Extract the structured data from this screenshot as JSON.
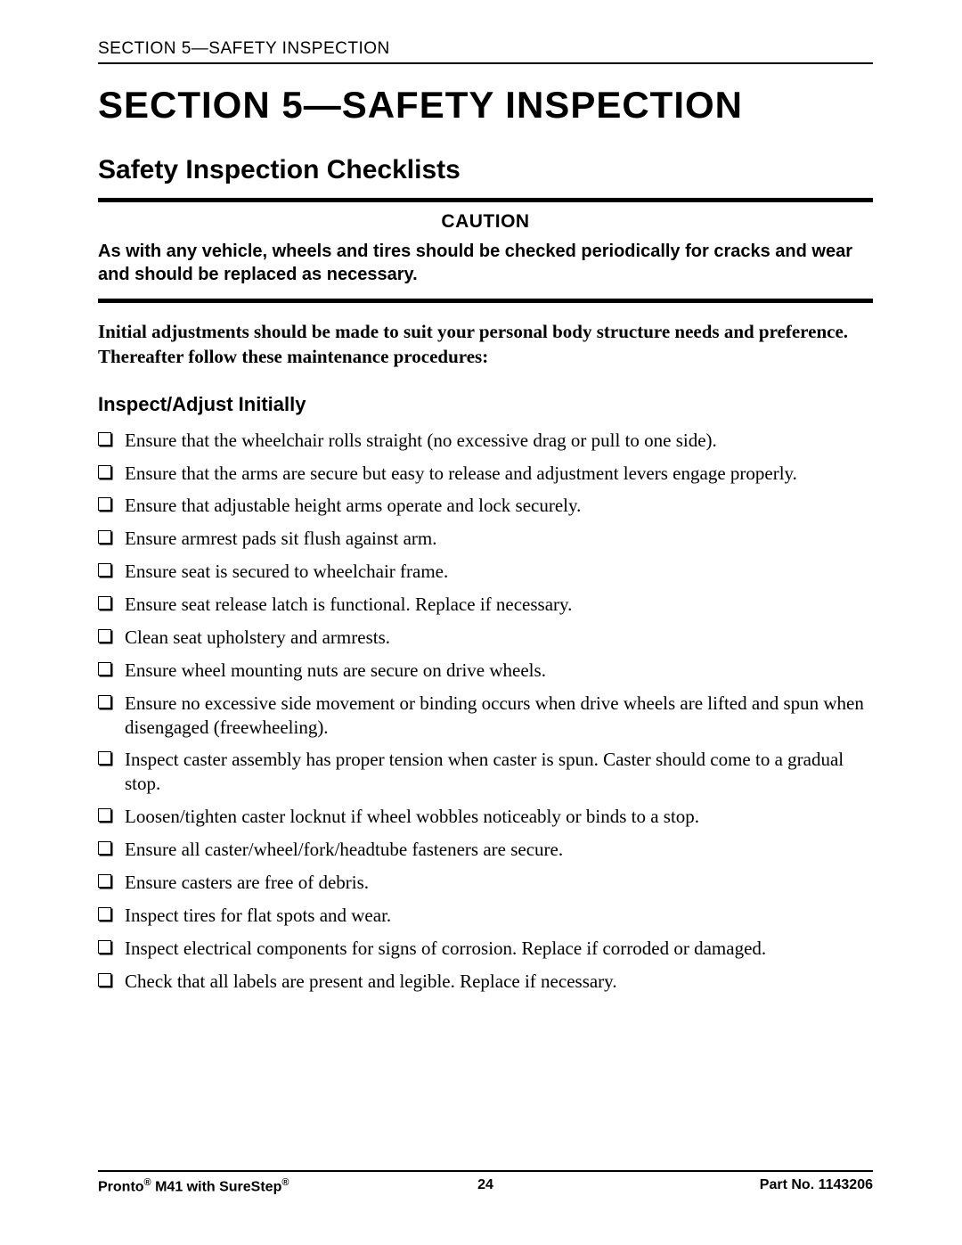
{
  "running_head": "SECTION 5—SAFETY INSPECTION",
  "section_title": "SECTION 5—SAFETY INSPECTION",
  "subsection_title": "Safety Inspection Checklists",
  "caution": {
    "label": "CAUTION",
    "text": "As with any vehicle, wheels and tires should be checked periodically for cracks and wear and should be replaced as necessary."
  },
  "intro": "Initial adjustments should be made to suit your personal body structure needs and preference. Thereafter follow these maintenance procedures:",
  "checklist": {
    "heading": "Inspect/Adjust Initially",
    "items": [
      "Ensure that the wheelchair rolls straight (no excessive drag or pull to one side).",
      "Ensure that the arms are secure but easy to release and adjustment levers engage properly.",
      "Ensure that adjustable height arms operate and lock securely.",
      "Ensure armrest pads sit flush against arm.",
      "Ensure seat is secured to wheelchair frame.",
      "Ensure seat release latch is functional. Replace if necessary.",
      "Clean seat upholstery and armrests.",
      "Ensure wheel mounting nuts are secure on drive wheels.",
      "Ensure no excessive side movement or binding occurs when drive wheels are lifted and spun when disengaged (freewheeling).",
      "Inspect caster assembly has proper tension when caster is spun. Caster should come to a gradual stop.",
      "Loosen/tighten caster locknut if wheel wobbles noticeably or binds to a stop.",
      "Ensure all caster/wheel/fork/headtube fasteners are secure.",
      "Ensure casters are free of debris.",
      "Inspect tires for flat spots and wear.",
      "Inspect electrical components for signs of corrosion. Replace if corroded or damaged.",
      "Check that all labels are present and legible. Replace if necessary."
    ]
  },
  "footer": {
    "left_prefix": "Pronto",
    "left_mid": " M41 with SureStep",
    "page_number": "24",
    "right": "Part No. 1143206"
  }
}
